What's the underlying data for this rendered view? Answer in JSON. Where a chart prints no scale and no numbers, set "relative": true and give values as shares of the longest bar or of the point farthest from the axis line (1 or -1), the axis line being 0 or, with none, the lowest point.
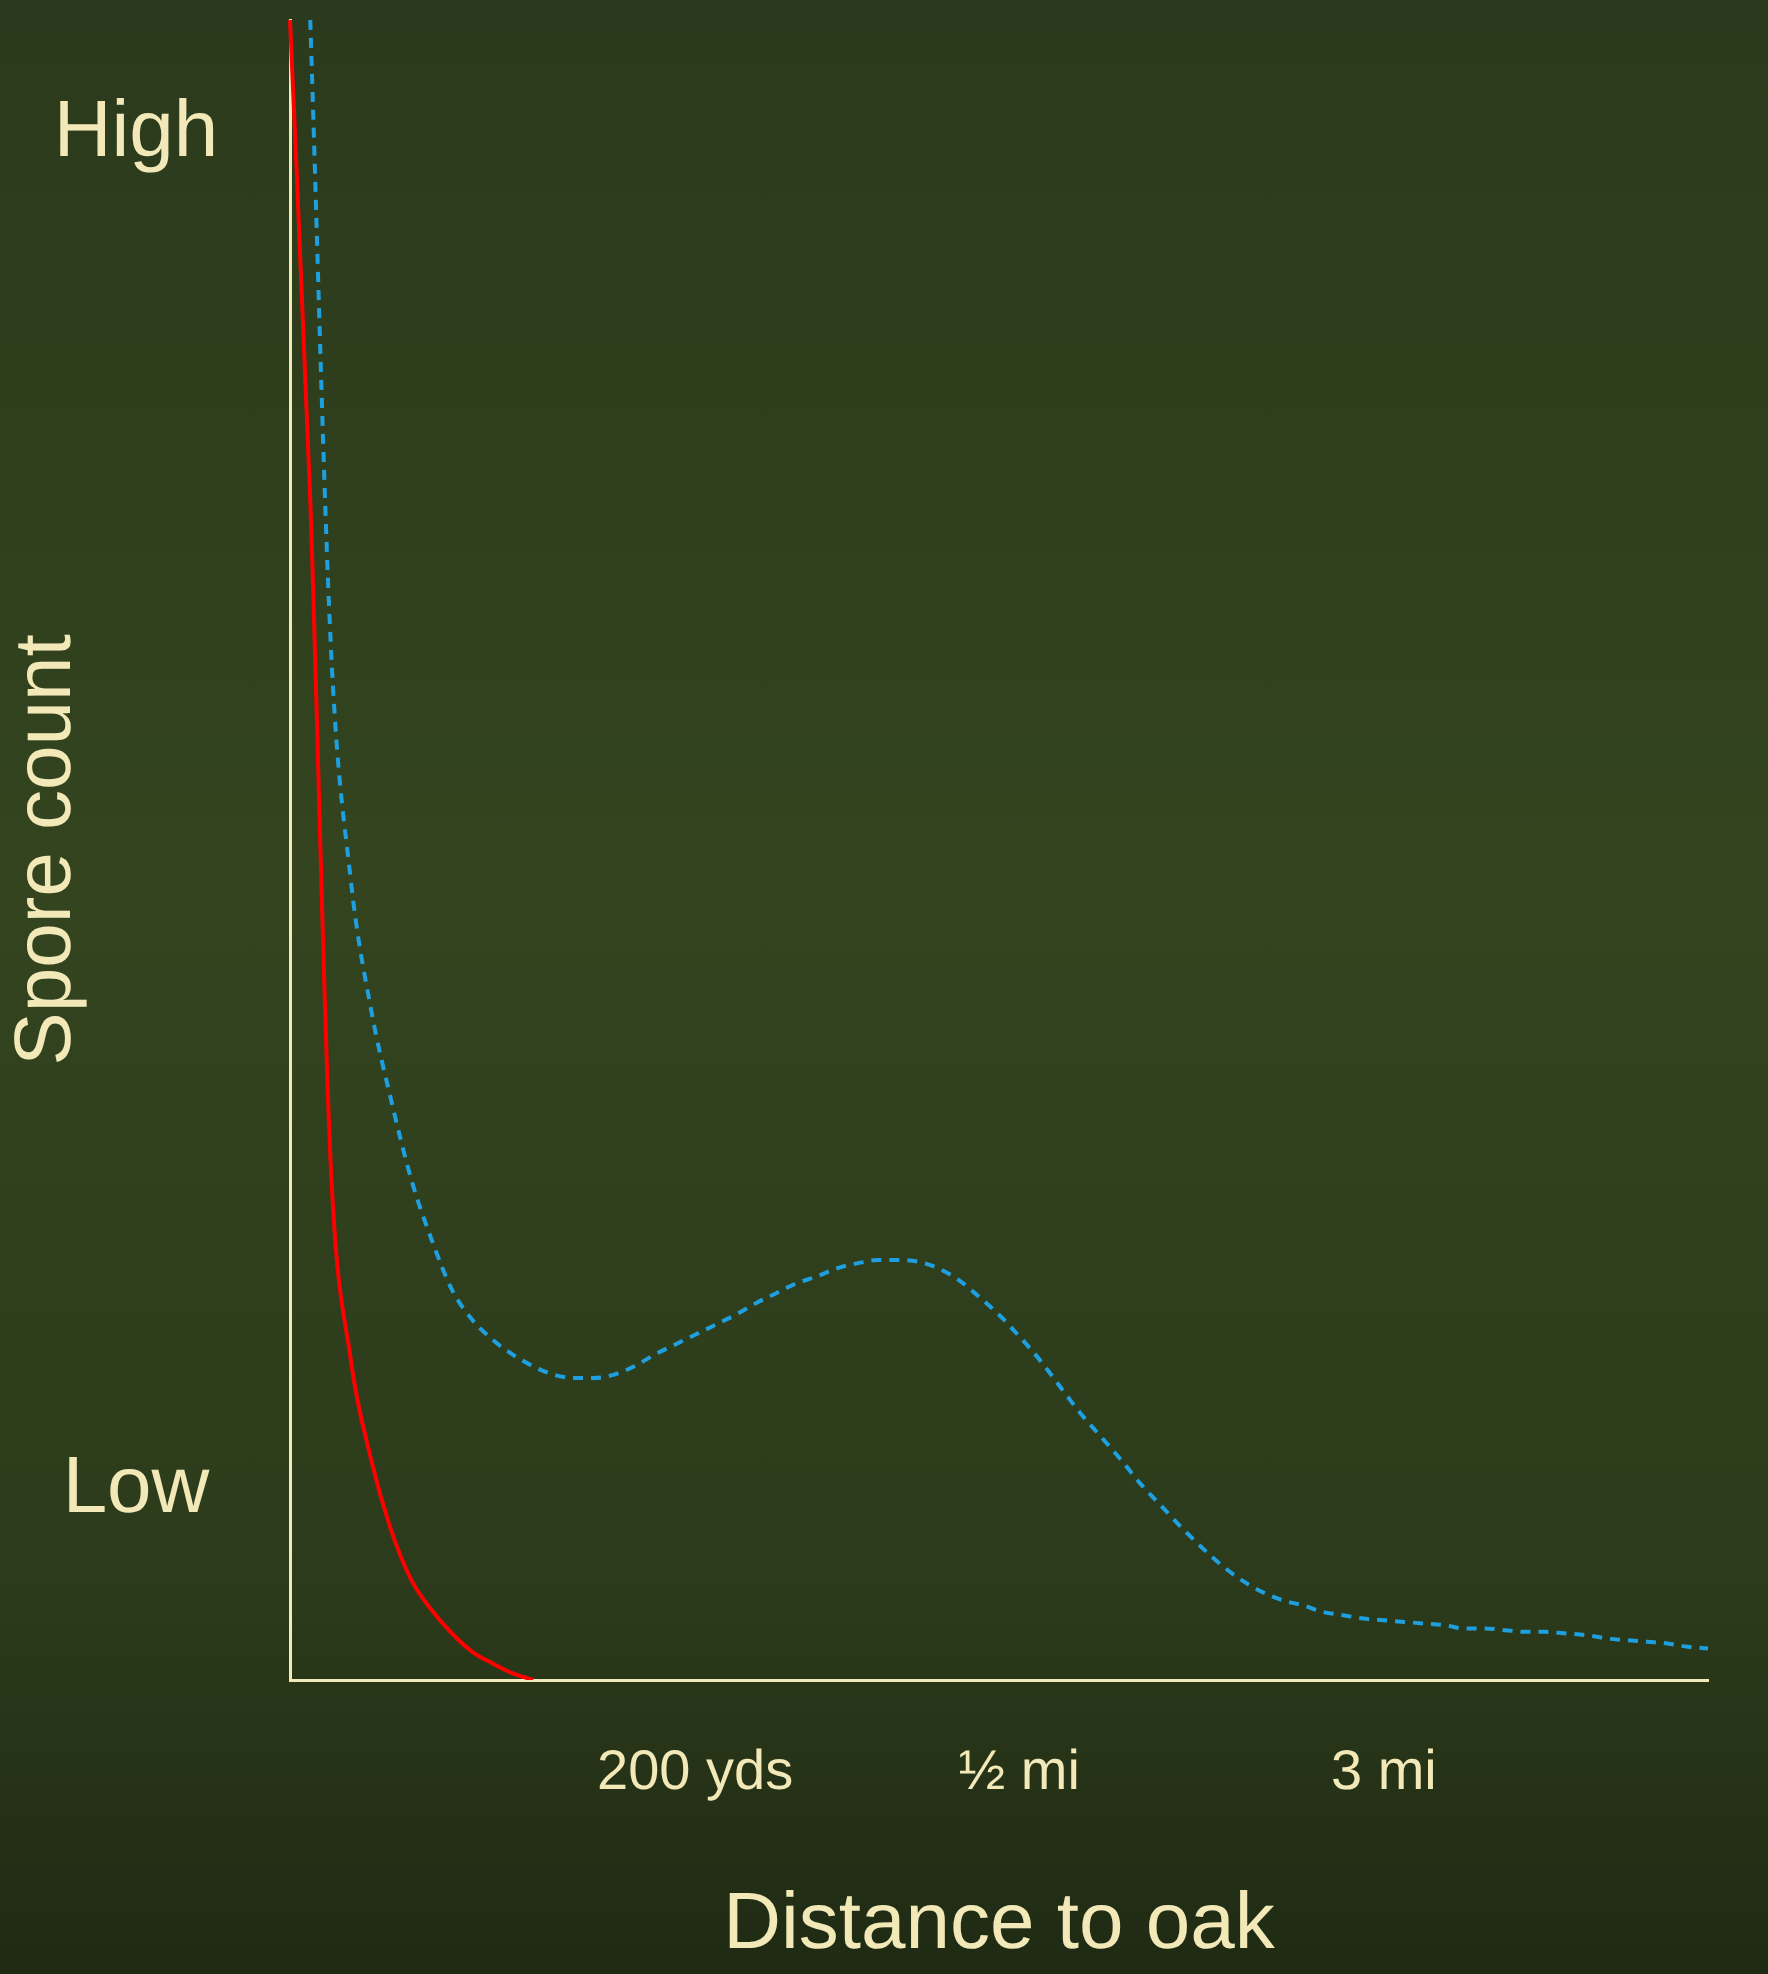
{
  "chart_data": {
    "type": "line",
    "relative": true,
    "xlabel": "Distance to oak",
    "ylabel": "Spore count",
    "annotations": [
      "High",
      "Low"
    ],
    "categories": [
      null,
      null,
      null,
      null,
      null,
      null,
      null,
      null,
      null,
      null,
      null,
      null,
      null,
      null,
      null,
      null,
      null,
      null,
      null,
      null,
      "200 yds",
      null,
      null,
      null,
      null,
      null,
      null,
      null,
      null,
      null,
      null,
      null,
      null,
      null,
      null,
      null,
      "½ mi",
      null,
      null,
      null,
      null,
      null,
      null,
      null,
      null,
      null,
      null,
      null,
      null,
      null,
      null,
      null,
      null,
      null,
      "3 mi",
      null,
      null,
      null,
      null,
      null,
      null,
      null,
      null,
      null,
      null,
      null,
      null,
      null,
      null,
      null,
      null
    ],
    "series": [
      {
        "color": "#ff0000",
        "line_style": "solid",
        "values": [
          1,
          0.711,
          0.313,
          0.193,
          0.133,
          0.09,
          0.06,
          0.042,
          0.028,
          0.017,
          0.01,
          0.004,
          0,
          null,
          null,
          null,
          null,
          null,
          null,
          null,
          null,
          null,
          null,
          null,
          null,
          null,
          null,
          null,
          null,
          null,
          null,
          null,
          null,
          null,
          null,
          null,
          null,
          null,
          null,
          null,
          null,
          null,
          null,
          null,
          null,
          null,
          null,
          null,
          null,
          null,
          null,
          null,
          null,
          null,
          null,
          null,
          null,
          null,
          null,
          null,
          null,
          null,
          null,
          null,
          null,
          null,
          null,
          null,
          null,
          null,
          null
        ]
      },
      {
        "color": "#1ea0e0",
        "line_style": "dashed",
        "values": [
          null,
          1,
          0.627,
          0.482,
          0.404,
          0.349,
          0.301,
          0.265,
          0.235,
          0.217,
          0.205,
          0.196,
          0.189,
          0.184,
          0.182,
          0.182,
          0.184,
          0.189,
          0.196,
          0.202,
          0.208,
          0.214,
          0.22,
          0.227,
          0.233,
          0.239,
          0.243,
          0.248,
          0.251,
          0.253,
          0.253,
          0.252,
          0.248,
          0.241,
          0.231,
          0.22,
          0.207,
          0.193,
          0.177,
          0.161,
          0.147,
          0.133,
          0.118,
          0.105,
          0.092,
          0.08,
          0.069,
          0.06,
          0.053,
          0.048,
          0.045,
          0.041,
          0.039,
          0.037,
          0.036,
          0.035,
          0.034,
          0.033,
          0.031,
          0.031,
          0.03,
          0.029,
          0.029,
          0.028,
          0.027,
          0.025,
          0.024,
          0.023,
          0.022,
          0.02,
          0.019
        ]
      }
    ],
    "marker": "none",
    "grid": false,
    "legend": false
  }
}
